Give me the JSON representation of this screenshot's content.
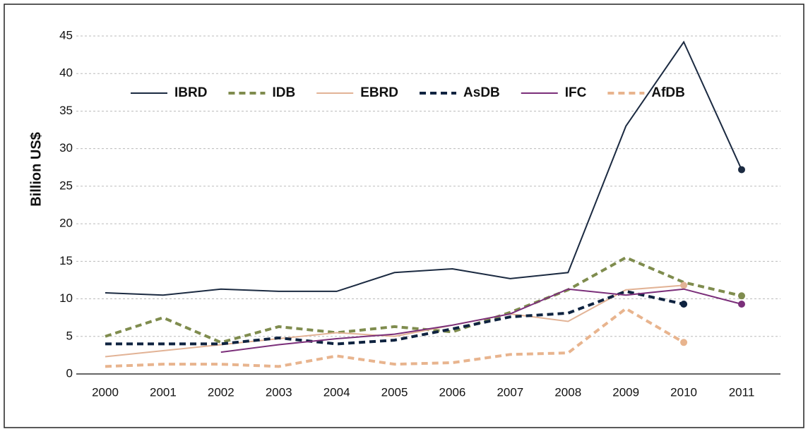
{
  "chart_data": {
    "type": "line",
    "y_label": "Billion US$",
    "categories": [
      "2000",
      "2001",
      "2002",
      "2003",
      "2004",
      "2005",
      "2006",
      "2007",
      "2008",
      "2009",
      "2010",
      "2011"
    ],
    "ylim": [
      0,
      45
    ],
    "yticks": [
      0,
      5,
      10,
      15,
      20,
      25,
      30,
      35,
      40,
      45
    ],
    "grid": true,
    "series": [
      {
        "name": "IBRD",
        "color": "#1b2a41",
        "dash": false,
        "values": [
          10.8,
          10.5,
          11.3,
          11.0,
          11.0,
          13.5,
          14.0,
          12.7,
          13.5,
          33.0,
          44.2,
          27.2
        ]
      },
      {
        "name": "IDB",
        "color": "#7f8c4e",
        "dash": true,
        "values": [
          5.0,
          7.5,
          4.2,
          6.3,
          5.5,
          6.3,
          5.6,
          8.2,
          11.2,
          15.5,
          12.2,
          10.4
        ]
      },
      {
        "name": "EBRD",
        "color": "#e2b396",
        "dash": false,
        "values": [
          2.3,
          3.1,
          3.9,
          4.7,
          5.5,
          5.0,
          6.5,
          8.0,
          7.0,
          11.2,
          11.8,
          null
        ]
      },
      {
        "name": "AsDB",
        "color": "#0f2340",
        "dash": true,
        "values": [
          4.0,
          4.0,
          4.0,
          4.8,
          4.0,
          4.5,
          6.0,
          7.6,
          8.1,
          11.0,
          9.3,
          null
        ]
      },
      {
        "name": "IFC",
        "color": "#7b2f7a",
        "dash": false,
        "values": [
          null,
          null,
          2.9,
          3.9,
          4.7,
          5.3,
          6.5,
          8.0,
          11.3,
          10.5,
          11.3,
          9.3
        ]
      },
      {
        "name": "AfDB",
        "color": "#e8b48e",
        "dash": true,
        "values": [
          1.0,
          1.3,
          1.3,
          1.0,
          2.4,
          1.3,
          1.5,
          2.6,
          2.8,
          8.7,
          4.2,
          null
        ]
      }
    ]
  }
}
